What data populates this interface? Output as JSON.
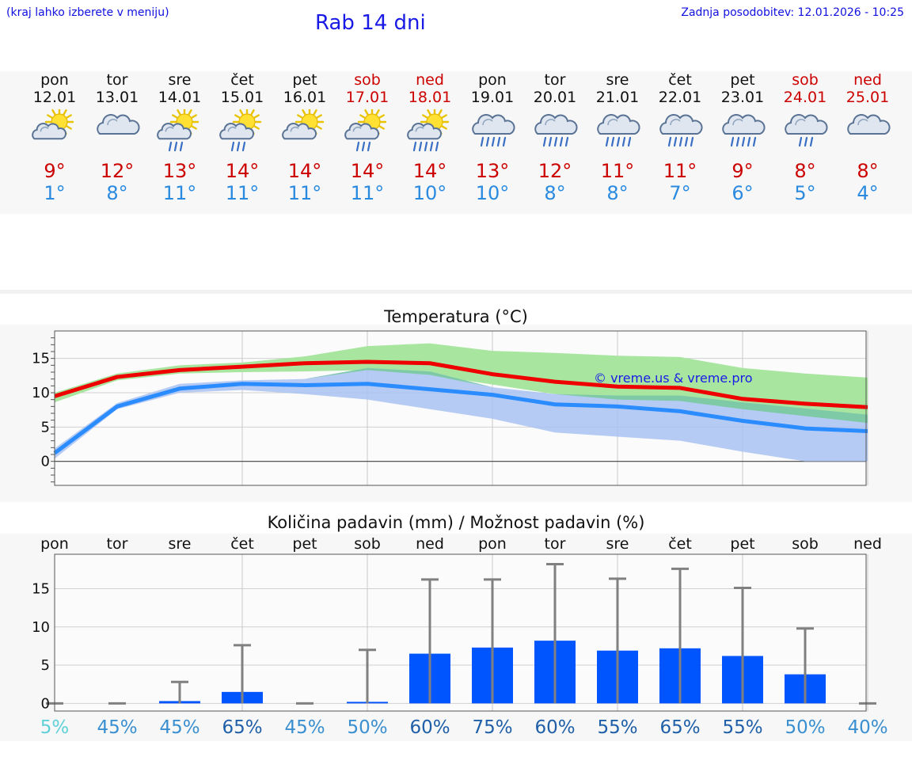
{
  "header": {
    "hint": "(kraj lahko izberete v meniju)",
    "title": "Rab 14 dni",
    "updated": "Zadnja posodobitev: 12.01.2026 - 10:25"
  },
  "days": [
    {
      "name": "pon",
      "date": "12.01",
      "weekend": false,
      "icon": "sun-cloud-icon",
      "max": "9°",
      "min": "1°"
    },
    {
      "name": "tor",
      "date": "13.01",
      "weekend": false,
      "icon": "cloud-icon",
      "max": "12°",
      "min": "8°"
    },
    {
      "name": "sre",
      "date": "14.01",
      "weekend": false,
      "icon": "sun-cloud-rain-icon",
      "max": "13°",
      "min": "11°"
    },
    {
      "name": "čet",
      "date": "15.01",
      "weekend": false,
      "icon": "sun-cloud-rain-icon",
      "max": "14°",
      "min": "11°"
    },
    {
      "name": "pet",
      "date": "16.01",
      "weekend": false,
      "icon": "sun-cloud-icon",
      "max": "14°",
      "min": "11°"
    },
    {
      "name": "sob",
      "date": "17.01",
      "weekend": true,
      "icon": "sun-cloud-rain-icon",
      "max": "14°",
      "min": "11°"
    },
    {
      "name": "ned",
      "date": "18.01",
      "weekend": true,
      "icon": "sun-cloud-heavy-rain-icon",
      "max": "14°",
      "min": "10°"
    },
    {
      "name": "pon",
      "date": "19.01",
      "weekend": false,
      "icon": "cloud-heavy-rain-icon",
      "max": "13°",
      "min": "10°"
    },
    {
      "name": "tor",
      "date": "20.01",
      "weekend": false,
      "icon": "cloud-heavy-rain-icon",
      "max": "12°",
      "min": "8°"
    },
    {
      "name": "sre",
      "date": "21.01",
      "weekend": false,
      "icon": "cloud-heavy-rain-icon",
      "max": "11°",
      "min": "8°"
    },
    {
      "name": "čet",
      "date": "22.01",
      "weekend": false,
      "icon": "cloud-heavy-rain-icon",
      "max": "11°",
      "min": "7°"
    },
    {
      "name": "pet",
      "date": "23.01",
      "weekend": false,
      "icon": "cloud-heavy-rain-icon",
      "max": "9°",
      "min": "6°"
    },
    {
      "name": "sob",
      "date": "24.01",
      "weekend": true,
      "icon": "cloud-rain-icon",
      "max": "8°",
      "min": "5°"
    },
    {
      "name": "ned",
      "date": "25.01",
      "weekend": true,
      "icon": "cloud-icon",
      "max": "8°",
      "min": "4°"
    }
  ],
  "colors": {
    "max_line": "#ee0000",
    "min_line": "#2a8cff",
    "max_band": "#a8e6a0",
    "min_band": "#a9c2f2",
    "overlap_band": "#7fcaa6",
    "bar": "#0055ff",
    "whisker": "#808080",
    "pct_low": "#5fd0d8",
    "pct_mid": "#3a8fd0",
    "pct_high": "#1f5fa8"
  },
  "chart_data": [
    {
      "type": "line",
      "title": "Temperatura (°C)",
      "watermark": "© vreme.us & vreme.pro",
      "x": [
        0,
        1,
        2,
        3,
        4,
        5,
        6,
        7,
        8,
        9,
        10,
        11,
        12,
        13
      ],
      "ylim": [
        -3.5,
        19
      ],
      "yticks": [
        0,
        5,
        10,
        15
      ],
      "series": [
        {
          "name": "max",
          "values": [
            9.5,
            12.3,
            13.3,
            13.8,
            14.3,
            14.5,
            14.3,
            12.7,
            11.6,
            10.9,
            10.7,
            9.1,
            8.4,
            7.9
          ]
        },
        {
          "name": "min",
          "values": [
            1.2,
            8.0,
            10.6,
            11.3,
            11.1,
            11.3,
            10.5,
            9.7,
            8.3,
            8.0,
            7.3,
            5.9,
            4.8,
            4.4
          ]
        }
      ],
      "bands": [
        {
          "name": "max_range",
          "low": [
            8.6,
            11.8,
            12.8,
            13.0,
            13.1,
            13.3,
            12.6,
            11.2,
            9.8,
            9.0,
            8.8,
            7.6,
            6.6,
            5.6
          ],
          "high": [
            10.0,
            12.8,
            14.0,
            14.4,
            15.3,
            16.8,
            17.2,
            16.1,
            15.8,
            15.4,
            15.2,
            13.6,
            12.8,
            12.2
          ]
        },
        {
          "name": "min_range",
          "low": [
            0.4,
            7.6,
            10.0,
            10.4,
            9.8,
            9.0,
            7.6,
            6.2,
            4.2,
            3.6,
            3.0,
            1.4,
            0.0,
            0.0
          ],
          "high": [
            1.9,
            8.5,
            11.3,
            11.8,
            12.0,
            13.6,
            13.1,
            10.8,
            9.8,
            9.6,
            9.6,
            8.6,
            7.7,
            6.8
          ]
        }
      ]
    },
    {
      "type": "bar",
      "title": "Količina padavin (mm) / Možnost padavin (%)",
      "categories": [
        "pon",
        "tor",
        "sre",
        "čet",
        "pet",
        "sob",
        "ned",
        "pon",
        "tor",
        "sre",
        "čet",
        "pet",
        "sob",
        "ned"
      ],
      "values": [
        0,
        0,
        0.3,
        1.5,
        0,
        0.2,
        6.5,
        7.3,
        8.2,
        6.9,
        7.2,
        6.2,
        3.8,
        0
      ],
      "whisker_max": [
        0,
        0,
        2.8,
        7.6,
        0,
        7.0,
        16.2,
        16.2,
        18.2,
        16.3,
        17.6,
        15.1,
        9.8,
        0
      ],
      "chance": [
        "5%",
        "45%",
        "45%",
        "65%",
        "45%",
        "50%",
        "60%",
        "75%",
        "60%",
        "55%",
        "65%",
        "55%",
        "50%",
        "40%"
      ],
      "chance_values": [
        5,
        45,
        45,
        65,
        45,
        50,
        60,
        75,
        60,
        55,
        65,
        55,
        50,
        40
      ],
      "ylim": [
        -1,
        19.5
      ],
      "yticks": [
        0,
        5,
        10,
        15
      ]
    }
  ]
}
